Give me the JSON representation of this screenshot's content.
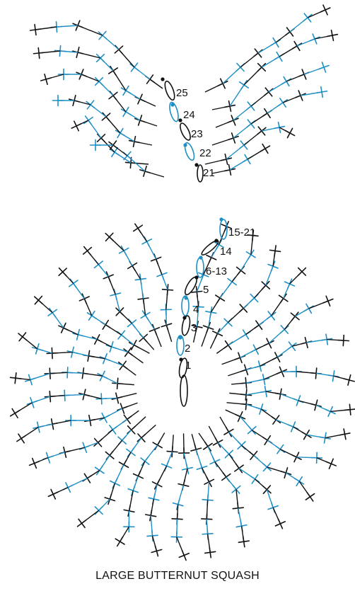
{
  "caption": "LARGE BUTTERNUT SQUASH",
  "colors": {
    "black": "#111111",
    "blue": "#1e8fc4"
  },
  "symbols": {
    "stitch": "cross-stitch-mark",
    "chain": "chain-oval",
    "start": "round-start-dot"
  },
  "stem_labels": [
    "25",
    "24",
    "23",
    "22",
    "21"
  ],
  "body_labels": [
    "15-21",
    "14",
    "6-13",
    "5",
    "4",
    "3",
    "2",
    "1"
  ]
}
